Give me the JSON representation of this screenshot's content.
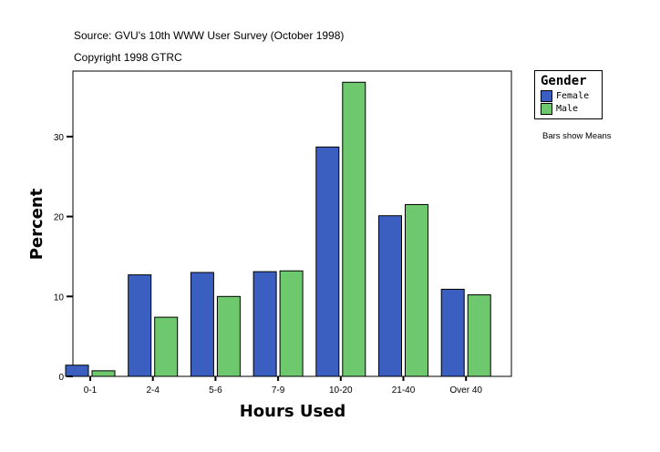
{
  "header": {
    "source": "Source: GVU's 10th WWW User Survey (October 1998)",
    "copyright": "Copyright 1998 GTRC"
  },
  "legend": {
    "title": "Gender",
    "items": [
      {
        "label": "Female",
        "color": "#3A5FC0"
      },
      {
        "label": "Male",
        "color": "#6DC86E"
      }
    ]
  },
  "note": "Bars show Means",
  "chart_data": {
    "type": "bar",
    "title": "",
    "xlabel": "Hours Used",
    "ylabel": "Percent",
    "categories": [
      "0-1",
      "2-4",
      "5-6",
      "7-9",
      "10-20",
      "21-40",
      "Over 40"
    ],
    "series": [
      {
        "name": "Female",
        "color": "#3A5FC0",
        "values": [
          1.4,
          12.7,
          13.0,
          13.1,
          28.7,
          20.1,
          10.9
        ]
      },
      {
        "name": "Male",
        "color": "#6DC86E",
        "values": [
          0.7,
          7.4,
          10.0,
          13.2,
          36.8,
          21.5,
          10.2
        ]
      }
    ],
    "yticks": [
      0,
      10,
      20,
      30
    ],
    "ylim": [
      0,
      38.2
    ],
    "grid": false,
    "legend_position": "right"
  }
}
